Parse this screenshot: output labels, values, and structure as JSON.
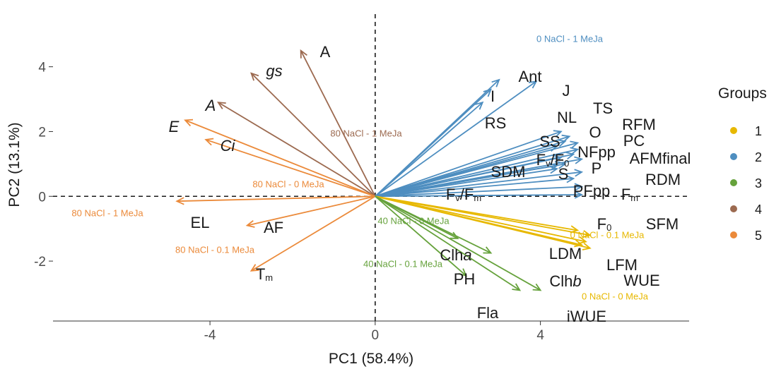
{
  "chart_data": {
    "type": "scatter",
    "subtype": "pca-biplot",
    "xlabel": "PC1 (58.4%)",
    "ylabel": "PC2 (13.1%)",
    "xlim": [
      -7.8,
      7.6
    ],
    "ylim": [
      -3.85,
      5.8
    ],
    "xticks": [
      -4,
      0,
      4
    ],
    "yticks": [
      -2,
      0,
      2,
      4
    ],
    "grid": false,
    "reference_lines": {
      "x": 0,
      "y": 0,
      "style": "dashed"
    },
    "legend": {
      "title": "Groups",
      "position": "right",
      "items": [
        {
          "label": "1",
          "color": "#E7B800"
        },
        {
          "label": "2",
          "color": "#4E8EC0"
        },
        {
          "label": "3",
          "color": "#66A23C"
        },
        {
          "label": "4",
          "color": "#9C6A50"
        },
        {
          "label": "5",
          "color": "#EB8A3A"
        }
      ]
    },
    "variables": [
      {
        "name": "A",
        "group": "4",
        "x": -1.8,
        "y": 4.5,
        "italic": false
      },
      {
        "name": "gs",
        "group": "4",
        "x": -3.0,
        "y": 3.8,
        "italic": true
      },
      {
        "name": "A",
        "group": "4",
        "x": -3.8,
        "y": 2.9,
        "italic": true
      },
      {
        "name": "E",
        "group": "5",
        "x": -4.6,
        "y": 2.35,
        "italic": true
      },
      {
        "name": "Ci",
        "group": "5",
        "x": -4.1,
        "y": 1.75,
        "italic": true
      },
      {
        "name": "EL",
        "group": "5",
        "x": -4.8,
        "y": -0.15,
        "italic": false
      },
      {
        "name": "AF",
        "group": "5",
        "x": -3.1,
        "y": -0.9,
        "italic": false
      },
      {
        "name": "T",
        "sub": "m",
        "group": "5",
        "x": -3.0,
        "y": -2.3,
        "italic": false
      },
      {
        "name": "Ant",
        "group": "2",
        "x": 3.0,
        "y": 3.6,
        "italic": false
      },
      {
        "name": "I",
        "group": "2",
        "x": 2.8,
        "y": 3.3,
        "italic": false
      },
      {
        "name": "J",
        "group": "2",
        "x": 3.9,
        "y": 3.55,
        "italic": false
      },
      {
        "name": "RS",
        "group": "2",
        "x": 2.6,
        "y": 2.9,
        "italic": false
      },
      {
        "name": "NL",
        "group": "2",
        "x": 4.5,
        "y": 2.0,
        "italic": false
      },
      {
        "name": "TS",
        "group": "2",
        "x": 4.7,
        "y": 1.85,
        "italic": false
      },
      {
        "name": "RFM",
        "group": "2",
        "x": 4.9,
        "y": 1.65,
        "italic": false
      },
      {
        "name": "O",
        "group": "2",
        "x": 4.6,
        "y": 1.7,
        "italic": false
      },
      {
        "name": "PC",
        "group": "2",
        "x": 4.9,
        "y": 1.45,
        "italic": false
      },
      {
        "name": "SS",
        "group": "2",
        "x": 4.4,
        "y": 1.55,
        "italic": false
      },
      {
        "name": "NFpp",
        "group": "2",
        "x": 4.8,
        "y": 1.3,
        "italic": false
      },
      {
        "name": "AFMfinal",
        "group": "2",
        "x": 5.0,
        "y": 1.15,
        "italic": false
      },
      {
        "name": "F",
        "sub": "v",
        "name2": "/F",
        "sub2": "0",
        "group": "2",
        "x": 4.5,
        "y": 1.2,
        "italic": false
      },
      {
        "name": "P",
        "group": "2",
        "x": 4.6,
        "y": 1.0,
        "italic": false
      },
      {
        "name": "S",
        "group": "2",
        "x": 4.4,
        "y": 0.95,
        "italic": false
      },
      {
        "name": "SDM",
        "group": "2",
        "x": 4.4,
        "y": 0.85,
        "italic": false
      },
      {
        "name": "RDM",
        "group": "2",
        "x": 5.0,
        "y": 0.75,
        "italic": false
      },
      {
        "name": "PFpp",
        "group": "2",
        "x": 4.8,
        "y": 0.55,
        "italic": false
      },
      {
        "name": "F",
        "sub": "m",
        "group": "2",
        "x": 5.0,
        "y": 0.3,
        "italic": false
      },
      {
        "name": "F",
        "sub": "v",
        "name2": "/F",
        "sub2": "m",
        "group": "2",
        "x": 5.0,
        "y": 0.05,
        "italic": false
      },
      {
        "name": "F",
        "sub": "0",
        "group": "1",
        "x": 4.9,
        "y": -1.05,
        "italic": false
      },
      {
        "name": "SFM",
        "group": "1",
        "x": 5.2,
        "y": -1.2,
        "italic": false
      },
      {
        "name": "LDM",
        "group": "1",
        "x": 5.0,
        "y": -1.5,
        "italic": false
      },
      {
        "name": "LFM",
        "group": "1",
        "x": 5.2,
        "y": -1.6,
        "italic": false
      },
      {
        "name": "WUE",
        "group": "1",
        "x": 5.1,
        "y": -1.4,
        "italic": false
      },
      {
        "name": "Clh",
        "tail": "a",
        "group": "3",
        "x": 2.0,
        "y": -1.3,
        "italic": false
      },
      {
        "name": "PH",
        "group": "3",
        "x": 2.2,
        "y": -2.45,
        "italic": false
      },
      {
        "name": "Clh",
        "tail": "b",
        "group": "3",
        "x": 4.0,
        "y": -2.9,
        "italic": false
      },
      {
        "name": "iWUE",
        "group": "3",
        "x": 2.8,
        "y": -1.75,
        "italic": false
      },
      {
        "name": "Fla",
        "group": "3",
        "x": 3.5,
        "y": -2.9,
        "italic": false
      }
    ],
    "treatment_labels": [
      {
        "text": "0 NaCl - 1 MeJa",
        "group": "2",
        "x": 3.6,
        "y": 5.0
      },
      {
        "text": "80 NaCl - 1 MeJa",
        "group": "4",
        "x": -1.6,
        "y": 2.15
      },
      {
        "text": "80 NaCl - 0 MeJa",
        "group": "5",
        "x": -2.4,
        "y": 0.6
      },
      {
        "text": "80 NaCl - 1 MeJa",
        "group": "5",
        "x": -6.4,
        "y": -0.38
      },
      {
        "text": "80 NaCl - 0.1 MeJa",
        "group": "5",
        "x": -4.0,
        "y": -1.45
      },
      {
        "text": "40 NaCl - 0 MeJa",
        "group": "3",
        "x": 0.95,
        "y": -0.6
      },
      {
        "text": "40 NaCl - 0.1 MeJa",
        "group": "3",
        "x": 0.95,
        "y": -1.9
      },
      {
        "text": "0 NaCl - 0.1 MeJa",
        "group": "1",
        "x": 5.2,
        "y": -1.0
      },
      {
        "text": "0 NaCl - 0 MeJa",
        "group": "1",
        "x": 5.2,
        "y": -2.9
      }
    ]
  }
}
